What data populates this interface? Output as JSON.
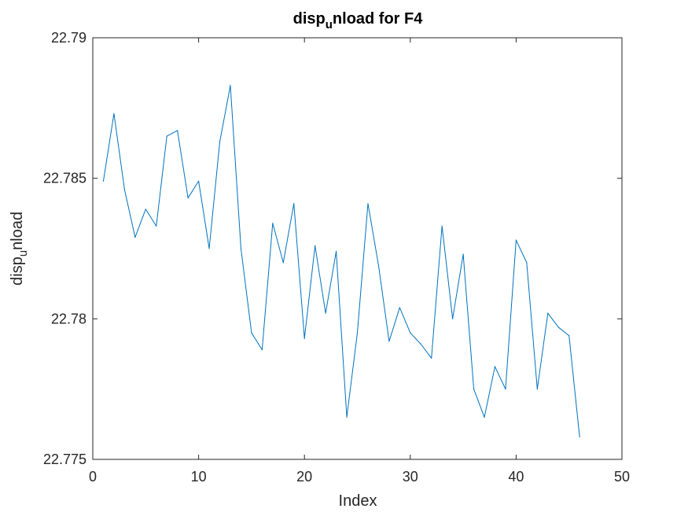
{
  "chart_data": {
    "type": "line",
    "title": {
      "part1": "disp",
      "subscript": "u",
      "part2": "nload for F4"
    },
    "xlabel": "Index",
    "ylabel": {
      "part1": "disp",
      "subscript": "u",
      "part2": "nload"
    },
    "xlim": [
      0,
      50
    ],
    "ylim": [
      22.775,
      22.79
    ],
    "xticks": [
      0,
      10,
      20,
      30,
      40,
      50
    ],
    "yticks": [
      22.775,
      22.78,
      22.785,
      22.79
    ],
    "ytick_labels": [
      "22.775",
      "22.78",
      "22.785",
      "22.79"
    ],
    "grid": false,
    "colors": {
      "line": "#0072BD",
      "axes": "#262626"
    },
    "series": [
      {
        "x": [
          1,
          2,
          3,
          4,
          5,
          6,
          7,
          8,
          9,
          10,
          11,
          12,
          13,
          14,
          15,
          16,
          17,
          18,
          19,
          20,
          21,
          22,
          23,
          24,
          25,
          26,
          27,
          28,
          29,
          30,
          31,
          32,
          33,
          34,
          35,
          36,
          37,
          38,
          39,
          40,
          41,
          42,
          43,
          44,
          45,
          46
        ],
        "values": [
          22.7849,
          22.7873,
          22.7846,
          22.7829,
          22.7839,
          22.7833,
          22.7865,
          22.7867,
          22.7843,
          22.7849,
          22.7825,
          22.7863,
          22.7883,
          22.7825,
          22.7795,
          22.7789,
          22.7834,
          22.782,
          22.7841,
          22.7793,
          22.7826,
          22.7802,
          22.7824,
          22.7765,
          22.7795,
          22.7841,
          22.7819,
          22.7792,
          22.7804,
          22.7795,
          22.7791,
          22.7786,
          22.7833,
          22.78,
          22.7823,
          22.7775,
          22.7765,
          22.7783,
          22.7775,
          22.7828,
          22.782,
          22.7775,
          22.7802,
          22.7797,
          22.7794,
          22.7758
        ]
      }
    ]
  }
}
